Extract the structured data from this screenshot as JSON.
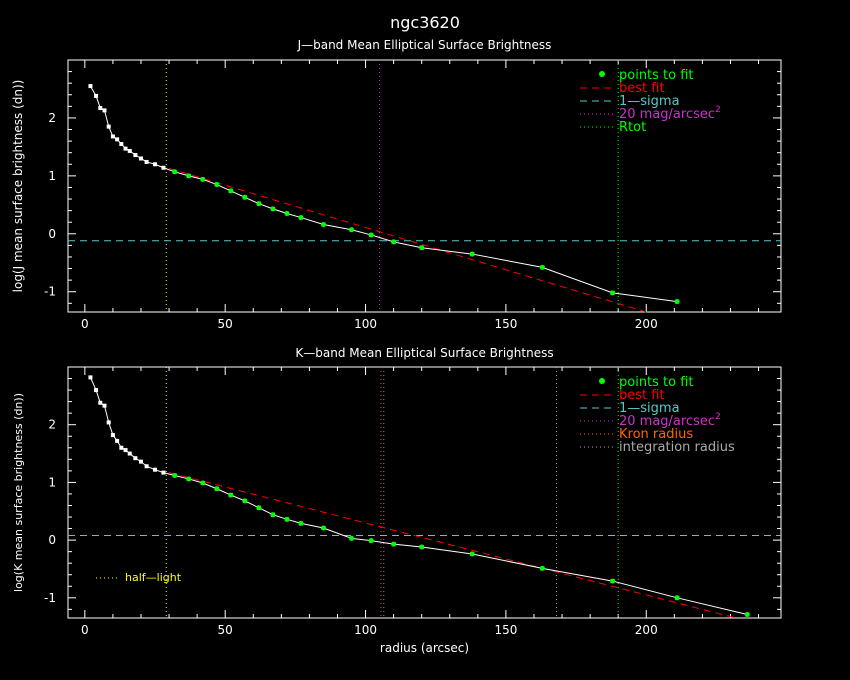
{
  "figure_title": "ngc3620",
  "colors": {
    "background": "#000000",
    "axes": "#ffffff",
    "data_white": "#ffffff",
    "fit_points": "#00ff00",
    "best_fit": "#ff0000",
    "sigma": "#55cccc",
    "mag20": "#cc33cc",
    "rtot": "#00ff00",
    "half_light": "#ffff00",
    "kron": "#ff6600",
    "integration": "#aaaaaa"
  },
  "chart_data": [
    {
      "type": "line",
      "title": "J—band Mean Elliptical Surface Brightness",
      "xlabel": "",
      "ylabel": "log(J mean surface brightness (dn))",
      "xlim": [
        -6,
        248
      ],
      "ylim": [
        -1.35,
        3.0
      ],
      "xticks": [
        "0",
        "50",
        "100",
        "150",
        "200"
      ],
      "yticks": [
        "-1",
        "0",
        "1",
        "2"
      ],
      "grid": false,
      "legend": {
        "placement": "top-right",
        "entries": [
          {
            "label": "points to fit",
            "style": "dot",
            "color": "#00ff00"
          },
          {
            "label": "best fit",
            "style": "dash",
            "color": "#ff0000"
          },
          {
            "label": "1—sigma",
            "style": "dash",
            "color": "#55cccc"
          },
          {
            "label": "20 mag/arcsec",
            "sup": "2",
            "style": "dot-line",
            "color": "#cc33cc"
          },
          {
            "label": "Rtot",
            "style": "dot-line",
            "color": "#00ff00"
          }
        ]
      },
      "profile_x": [
        2,
        4,
        5.5,
        7,
        8.5,
        10,
        11.5,
        13,
        14.5,
        16,
        18,
        20,
        22,
        25,
        28,
        32,
        37,
        42,
        47,
        52,
        57,
        62,
        67,
        72,
        77,
        85,
        95,
        102,
        110,
        120,
        138,
        163,
        188,
        211
      ],
      "profile_y": [
        2.55,
        2.38,
        2.17,
        2.13,
        1.85,
        1.68,
        1.63,
        1.55,
        1.47,
        1.43,
        1.36,
        1.3,
        1.24,
        1.2,
        1.14,
        1.07,
        1.0,
        0.94,
        0.85,
        0.74,
        0.63,
        0.52,
        0.43,
        0.35,
        0.28,
        0.16,
        0.07,
        -0.02,
        -0.14,
        -0.24,
        -0.35,
        -0.58,
        -1.02,
        -1.17
      ],
      "fit_points_x": [
        32,
        37,
        42,
        47,
        52,
        57,
        62,
        67,
        72,
        77,
        85,
        95,
        102,
        110,
        120,
        138,
        163,
        188,
        211
      ],
      "fit_points_y": [
        1.07,
        1.0,
        0.94,
        0.85,
        0.74,
        0.63,
        0.52,
        0.43,
        0.35,
        0.28,
        0.16,
        0.07,
        -0.02,
        -0.14,
        -0.24,
        -0.35,
        -0.58,
        -1.02,
        -1.17
      ],
      "best_fit_x": [
        30,
        200
      ],
      "best_fit_y": [
        1.13,
        -1.35
      ],
      "sigma_level": -0.12,
      "mag20_x": 105,
      "rtot_x": 190,
      "half_light_x": 29
    },
    {
      "type": "line",
      "title": "K—band Mean Elliptical Surface Brightness",
      "xlabel": "radius (arcsec)",
      "ylabel": "log(K mean surface brightness (dn))",
      "xlim": [
        -6,
        248
      ],
      "ylim": [
        -1.35,
        3.0
      ],
      "xticks": [
        "0",
        "50",
        "100",
        "150",
        "200"
      ],
      "yticks": [
        "-1",
        "0",
        "1",
        "2"
      ],
      "grid": false,
      "legend": {
        "placement": "top-right",
        "entries": [
          {
            "label": "points to fit",
            "style": "dot",
            "color": "#00ff00"
          },
          {
            "label": "best fit",
            "style": "dash",
            "color": "#ff0000"
          },
          {
            "label": "1—sigma",
            "style": "dash",
            "color": "#55cccc"
          },
          {
            "label": "20 mag/arcsec",
            "sup": "2",
            "style": "dot-line",
            "color": "#cc33cc"
          },
          {
            "label": "Kron radius",
            "style": "dot-line",
            "color": "#ff6600"
          },
          {
            "label": "integration radius",
            "style": "dot-line",
            "color": "#aaaaaa"
          }
        ]
      },
      "annotation": "half—light",
      "profile_x": [
        2,
        4,
        5.5,
        7,
        8.5,
        10,
        11.5,
        13,
        14.5,
        16,
        18,
        20,
        22,
        25,
        28,
        32,
        37,
        42,
        47,
        52,
        57,
        62,
        67,
        72,
        77,
        85,
        95,
        102,
        110,
        120,
        138,
        163,
        188,
        211,
        236
      ],
      "profile_y": [
        2.82,
        2.6,
        2.38,
        2.33,
        2.04,
        1.82,
        1.72,
        1.6,
        1.56,
        1.5,
        1.42,
        1.36,
        1.28,
        1.22,
        1.17,
        1.12,
        1.06,
        0.99,
        0.89,
        0.78,
        0.68,
        0.56,
        0.44,
        0.36,
        0.29,
        0.21,
        0.03,
        -0.01,
        -0.07,
        -0.12,
        -0.24,
        -0.49,
        -0.71,
        -1.0,
        -1.29
      ],
      "fit_points_x": [
        32,
        37,
        42,
        47,
        52,
        57,
        62,
        67,
        72,
        77,
        85,
        95,
        102,
        110,
        120,
        138,
        163,
        188,
        211,
        236
      ],
      "fit_points_y": [
        1.12,
        1.06,
        0.99,
        0.89,
        0.78,
        0.68,
        0.56,
        0.44,
        0.36,
        0.29,
        0.21,
        0.03,
        -0.01,
        -0.07,
        -0.12,
        -0.24,
        -0.49,
        -0.71,
        -1.0,
        -1.29
      ],
      "best_fit_x": [
        30,
        232
      ],
      "best_fit_y": [
        1.17,
        -1.35
      ],
      "sigma_level": 0.08,
      "mag20_x": 105.5,
      "kron_x": 106.5,
      "integration_x": 168,
      "rtot_x": 190,
      "half_light_x": 29
    }
  ]
}
